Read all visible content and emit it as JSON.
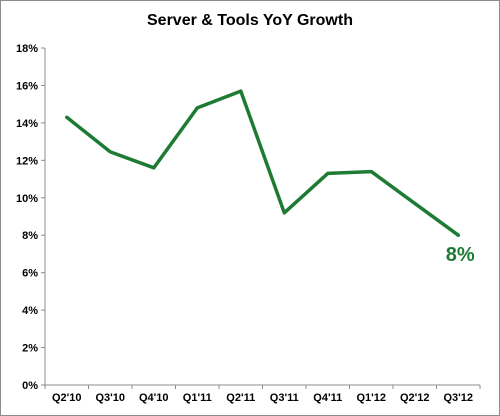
{
  "chart_data": {
    "type": "line",
    "title": "Server & Tools YoY Growth",
    "xlabel": "",
    "ylabel": "",
    "categories": [
      "Q2'10",
      "Q3'10",
      "Q4'10",
      "Q1'11",
      "Q2'11",
      "Q3'11",
      "Q4'11",
      "Q1'12",
      "Q2'12",
      "Q3'12"
    ],
    "series": [
      {
        "values": [
          14.3,
          12.45,
          11.6,
          14.8,
          15.7,
          9.2,
          11.3,
          11.4,
          9.7,
          8.0
        ],
        "color": "#1e7b34"
      }
    ],
    "ylim": [
      0,
      18
    ],
    "y_ticks": [
      0,
      2,
      4,
      6,
      8,
      10,
      12,
      14,
      16,
      18
    ],
    "y_tick_labels": [
      "0%",
      "2%",
      "4%",
      "6%",
      "8%",
      "10%",
      "12%",
      "14%",
      "16%",
      "18%"
    ],
    "grid": false,
    "legend": "none",
    "annotation": {
      "text": "8%",
      "color": "#1e7b34"
    }
  }
}
